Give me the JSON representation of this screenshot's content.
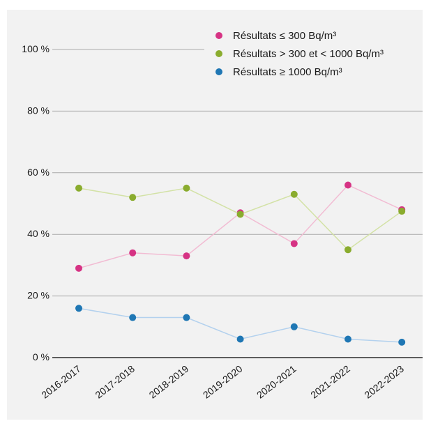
{
  "chart_data": {
    "type": "line",
    "title": "",
    "xlabel": "",
    "ylabel": "",
    "categories": [
      "2016-2017",
      "2017-2018",
      "2018-2019",
      "2019-2020",
      "2020-2021",
      "2021-2022",
      "2022-2023"
    ],
    "ylim": [
      0,
      100
    ],
    "y_ticks": [
      0,
      20,
      40,
      60,
      80,
      100
    ],
    "y_tick_labels": [
      "0 %",
      "20 %",
      "40 %",
      "60 %",
      "80 %",
      "100 %"
    ],
    "grid": true,
    "legend_position": "top-right",
    "series": [
      {
        "name": "Résultats ≤ 300 Bq/m³",
        "values": [
          29,
          34,
          33,
          47,
          37,
          56,
          48
        ],
        "color": "#d63384",
        "line_color": "#f2bcd3"
      },
      {
        "name": "Résultats > 300 et < 1000 Bq/m³",
        "values": [
          55,
          52,
          55,
          46.5,
          53,
          35,
          47.5
        ],
        "color": "#8aac2e",
        "line_color": "#d3e2a6"
      },
      {
        "name": "Résultats ≥ 1000 Bq/m³",
        "values": [
          16,
          13,
          13,
          6,
          10,
          6,
          5
        ],
        "color": "#1f77b4",
        "line_color": "#b3d1ee"
      }
    ]
  }
}
